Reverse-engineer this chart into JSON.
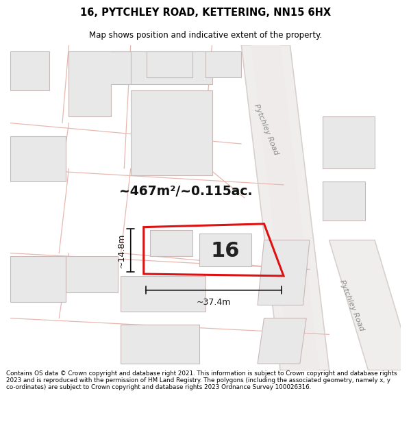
{
  "title_line1": "16, PYTCHLEY ROAD, KETTERING, NN15 6HX",
  "title_line2": "Map shows position and indicative extent of the property.",
  "footer_text": "Contains OS data © Crown copyright and database right 2021. This information is subject to Crown copyright and database rights 2023 and is reproduced with the permission of HM Land Registry. The polygons (including the associated geometry, namely x, y co-ordinates) are subject to Crown copyright and database rights 2023 Ordnance Survey 100026316.",
  "background_color": "#ffffff",
  "map_bg_color": "#ffffff",
  "road_color": "#f2e8e6",
  "road_line_color": "#e8b8b0",
  "road_gray_color": "#d8d0ce",
  "highlight_color": "#dd1111",
  "building_fill": "#e8e8e8",
  "building_border": "#c8b8b8",
  "dim_color": "#111111",
  "area_text": "~467m²/~0.115ac.",
  "label_16": "16",
  "dim_width": "~37.4m",
  "dim_height": "~14.8m",
  "road_label_upper": "Pytchley Road",
  "road_label_lower": "Pytchley Road"
}
